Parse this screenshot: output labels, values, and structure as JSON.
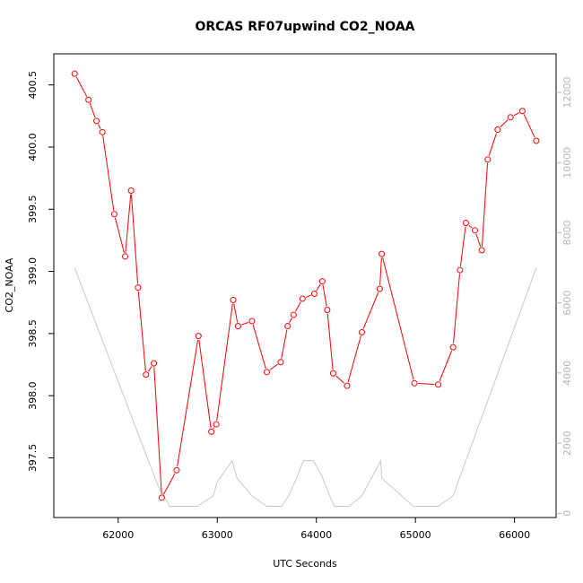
{
  "chart_data": {
    "type": "line",
    "title": "ORCAS RF07upwind CO2_NOAA",
    "xlabel": "UTC Seconds",
    "ylabel": "CO2_NOAA",
    "xlim": [
      61350,
      66420
    ],
    "ylim": [
      397.02,
      400.75
    ],
    "y2lim": [
      -120,
      13100
    ],
    "x_ticks": [
      62000,
      63000,
      64000,
      65000,
      66000
    ],
    "x_tick_labels": [
      "62000",
      "63000",
      "64000",
      "65000",
      "66000"
    ],
    "y_ticks": [
      397.5,
      398.0,
      398.5,
      399.0,
      399.5,
      400.0,
      400.5
    ],
    "y_tick_labels": [
      "397.5",
      "398.0",
      "398.5",
      "399.0",
      "399.5",
      "400.0",
      "400.5"
    ],
    "y2_ticks": [
      0,
      2000,
      4000,
      6000,
      8000,
      10000,
      12000
    ],
    "y2_tick_labels": [
      "0",
      "2000",
      "4000",
      "6000",
      "8000",
      "10000",
      "12000"
    ],
    "grid": false,
    "colors": {
      "co2": "#ff0000",
      "altitude": "#c8c8c8",
      "right_axis": "#b5b5b5"
    },
    "series": [
      {
        "marker": "open-circle",
        "x": [
          61560,
          61700,
          61780,
          61840,
          61960,
          62070,
          62130,
          62200,
          62280,
          62360,
          62440,
          62590,
          62810,
          62940,
          62990,
          63160,
          63210,
          63350,
          63500,
          63640,
          63710,
          63770,
          63860,
          63980,
          64060,
          64110,
          64170,
          64310,
          64460,
          64640,
          64660,
          64990,
          65230,
          65380,
          65450,
          65510,
          65600,
          65670,
          65730,
          65830,
          65960,
          66080,
          66220
        ],
        "y": [
          400.59,
          400.38,
          400.21,
          400.12,
          399.46,
          399.12,
          399.65,
          398.87,
          398.17,
          398.26,
          397.18,
          397.4,
          398.48,
          397.71,
          397.77,
          398.77,
          398.56,
          398.6,
          398.19,
          398.27,
          398.56,
          398.65,
          398.78,
          398.82,
          398.92,
          398.69,
          398.18,
          398.08,
          398.51,
          398.86,
          399.14,
          398.1,
          398.09,
          398.39,
          399.01,
          399.39,
          399.33,
          399.17,
          399.9,
          400.14,
          400.24,
          400.29,
          400.05
        ]
      },
      {
        "axis": "right",
        "x": [
          61560,
          62400,
          62520,
          62800,
          62960,
          63000,
          63150,
          63200,
          63350,
          63500,
          63650,
          63720,
          63800,
          63870,
          63970,
          64050,
          64150,
          64180,
          64330,
          64460,
          64650,
          64660,
          64980,
          65230,
          65380,
          66220
        ],
        "y": [
          7000,
          800,
          200,
          200,
          500,
          900,
          1500,
          1000,
          500,
          200,
          200,
          500,
          1000,
          1500,
          1500,
          1100,
          400,
          200,
          200,
          500,
          1500,
          1000,
          200,
          200,
          500,
          7000
        ]
      }
    ]
  }
}
